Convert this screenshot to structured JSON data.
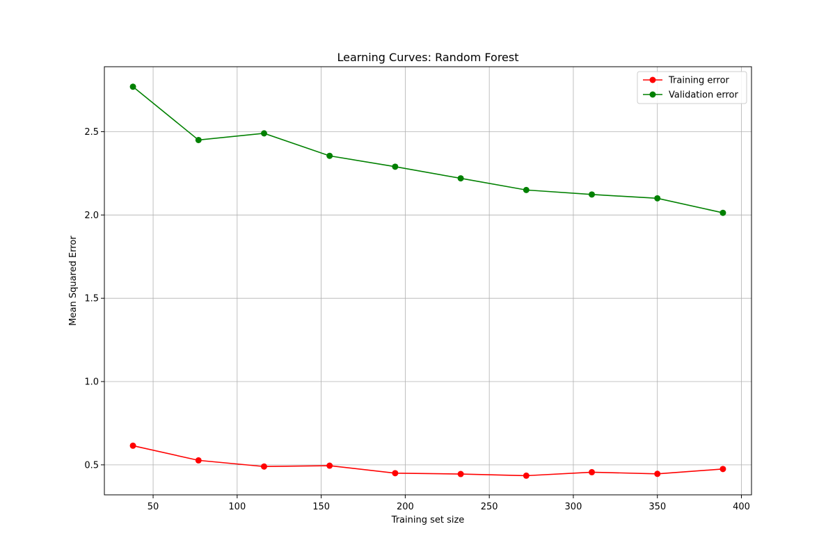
{
  "chart_data": {
    "type": "line",
    "title": "Learning Curves: Random Forest",
    "xlabel": "Training set size",
    "ylabel": "Mean Squared Error",
    "xlim": [
      21,
      406
    ],
    "ylim": [
      0.32,
      2.89
    ],
    "xticks": [
      50,
      100,
      150,
      200,
      250,
      300,
      350,
      400
    ],
    "xtick_labels": [
      "50",
      "100",
      "150",
      "200",
      "250",
      "300",
      "350",
      "400"
    ],
    "yticks": [
      0.5,
      1.0,
      1.5,
      2.0,
      2.5
    ],
    "ytick_labels": [
      "0.5",
      "1.0",
      "1.5",
      "2.0",
      "2.5"
    ],
    "grid": true,
    "legend_position": "top-right",
    "x": [
      38,
      77,
      116,
      155,
      194,
      233,
      272,
      311,
      350,
      389
    ],
    "series": [
      {
        "name": "Training error",
        "color": "#ff0000",
        "marker": "circle",
        "values": [
          0.615,
          0.527,
          0.49,
          0.495,
          0.45,
          0.445,
          0.435,
          0.456,
          0.446,
          0.475
        ]
      },
      {
        "name": "Validation error",
        "color": "#008000",
        "marker": "circle",
        "values": [
          2.77,
          2.45,
          2.49,
          2.355,
          2.29,
          2.22,
          2.15,
          2.123,
          2.1,
          2.013
        ]
      }
    ]
  }
}
